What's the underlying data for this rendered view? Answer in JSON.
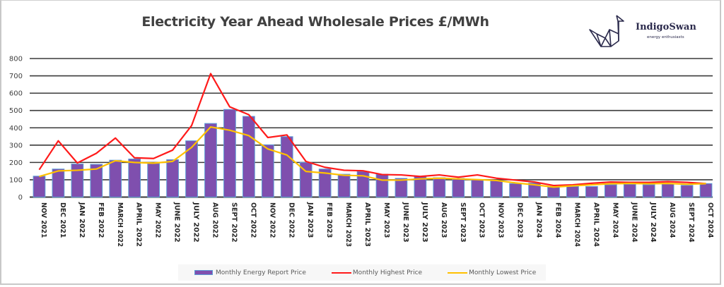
{
  "title": "Electricity Year Ahead Wholesale Prices £/MWh",
  "logo": {
    "name": "IndigoSwan",
    "tagline": "energy enthusiasts",
    "icon": "origami-swan-icon"
  },
  "colors": {
    "bar_fill": "#7f4fae",
    "bar_border": "#5b9bd5",
    "highest_line": "#ff1a1a",
    "lowest_line": "#ffc000",
    "gridline": "#3a3a3a",
    "text": "#404040"
  },
  "chart_data": {
    "type": "bar",
    "title": "Electricity Year Ahead Wholesale Prices £/MWh",
    "xlabel": "",
    "ylabel": "",
    "ylim": [
      0,
      800
    ],
    "yticks": [
      0,
      100,
      200,
      300,
      400,
      500,
      600,
      700,
      800
    ],
    "grid": true,
    "legend_position": "bottom",
    "categories": [
      "NOV 2021",
      "DEC 2021",
      "JAN 2022",
      "FEB 2022",
      "MARCH 2022",
      "APRIL 2022",
      "MAY 2022",
      "JUNE 2022",
      "JULY 2022",
      "AUG 2022",
      "SEPT 2022",
      "OCT 2022",
      "NOV 2022",
      "DEC 2022",
      "JAN 2023",
      "FEB 2023",
      "MARCH 2023",
      "APRIL 2023",
      "MAY 2023",
      "JUNE 2023",
      "JULY 2023",
      "AUG 2023",
      "SEPT 2023",
      "OCT 2023",
      "NOV 2023",
      "DEC 2023",
      "JAN 2024",
      "FEB 2024",
      "MARCH 2024",
      "APRIL 2024",
      "MAY 2024",
      "JUNE 2024",
      "JULY 2024",
      "AUG 2024",
      "SEPT 2024",
      "OCT 2024"
    ],
    "series": [
      {
        "name": "Monthly Energy Report Price",
        "type": "bar",
        "values": [
          121,
          162,
          191,
          189,
          213,
          220,
          194,
          216,
          325,
          425,
          506,
          466,
          302,
          349,
          200,
          162,
          132,
          148,
          132,
          108,
          119,
          112,
          108,
          100,
          95,
          78,
          81,
          58,
          61,
          61,
          71,
          74,
          71,
          75,
          68,
          78
        ]
      },
      {
        "name": "Monthly Highest Price",
        "type": "line",
        "values": [
          158,
          325,
          197,
          253,
          341,
          227,
          223,
          271,
          413,
          713,
          521,
          476,
          344,
          359,
          206,
          172,
          155,
          152,
          130,
          128,
          119,
          128,
          115,
          128,
          109,
          98,
          87,
          67,
          71,
          80,
          87,
          85,
          85,
          89,
          85,
          78
        ]
      },
      {
        "name": "Monthly Lowest Price",
        "type": "line",
        "values": [
          119,
          151,
          155,
          162,
          210,
          200,
          196,
          206,
          287,
          405,
          386,
          355,
          278,
          243,
          148,
          139,
          126,
          123,
          98,
          98,
          105,
          109,
          105,
          101,
          96,
          82,
          71,
          58,
          65,
          71,
          77,
          79,
          77,
          79,
          74,
          78
        ]
      }
    ]
  },
  "legend": {
    "items": [
      {
        "label": "Monthly Energy Report Price",
        "kind": "bar"
      },
      {
        "label": "Monthly Highest Price",
        "kind": "line"
      },
      {
        "label": "Monthly Lowest Price",
        "kind": "line"
      }
    ]
  }
}
